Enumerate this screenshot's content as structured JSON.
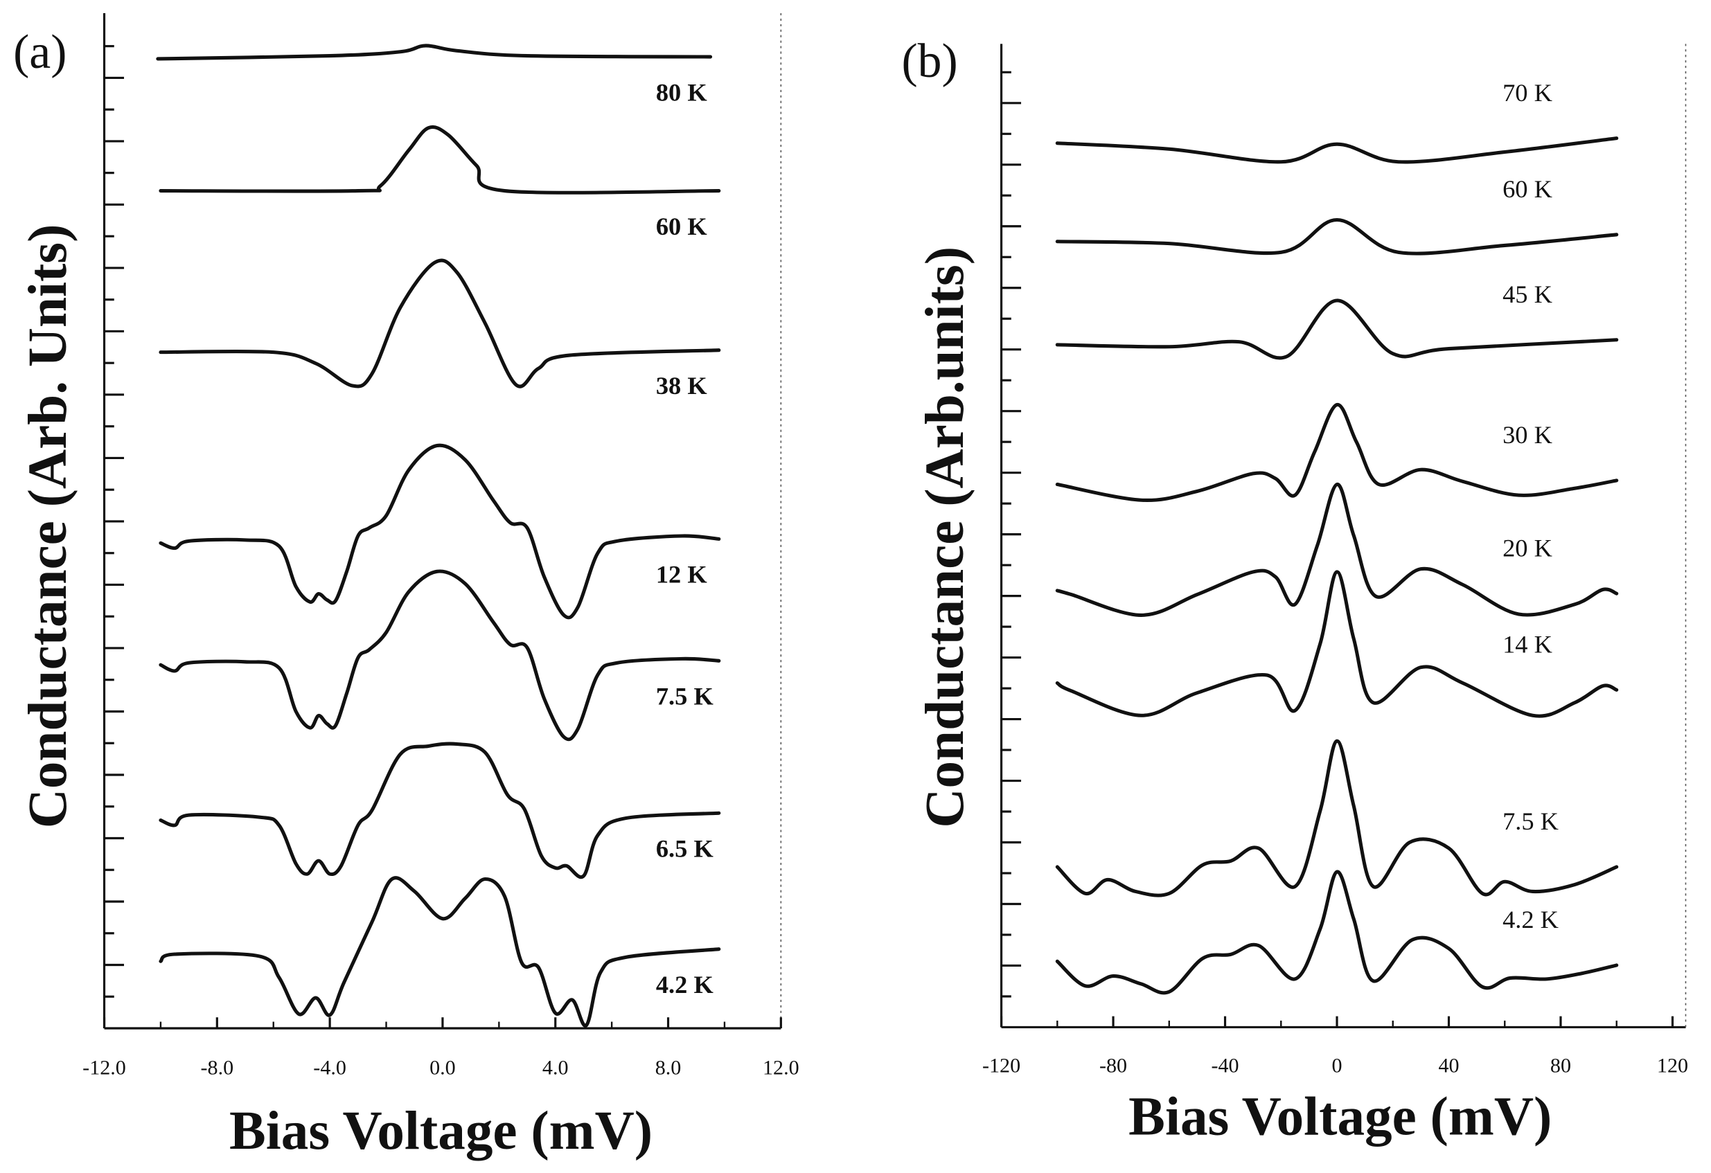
{
  "chart_data": [
    {
      "type": "line",
      "panel_label": "(a)",
      "xlabel": "Bias Voltage (mV)",
      "ylabel": "Conductance (Arb. Units)",
      "xlim": [
        -12,
        12
      ],
      "ylim": [
        0,
        10
      ],
      "xticks": [
        "-12.0",
        "-8.0",
        "-4.0",
        "0.0",
        "4.0",
        "8.0",
        "12.0"
      ],
      "xtick_values": [
        -12,
        -8,
        -4,
        0,
        4,
        8,
        12
      ],
      "y_tick_labels_shown": false,
      "grid": false,
      "series": [
        {
          "name": "80 K",
          "points": [
            [
              -10.1,
              9.55
            ],
            [
              -4,
              9.58
            ],
            [
              -1.5,
              9.62
            ],
            [
              -0.6,
              9.68
            ],
            [
              0.5,
              9.63
            ],
            [
              3,
              9.58
            ],
            [
              9.5,
              9.57
            ]
          ]
        },
        {
          "name": "60 K",
          "points": [
            [
              -10,
              8.25
            ],
            [
              -3,
              8.25
            ],
            [
              -2.2,
              8.3
            ],
            [
              -1.2,
              8.65
            ],
            [
              -0.5,
              8.87
            ],
            [
              0.2,
              8.8
            ],
            [
              1.2,
              8.5
            ],
            [
              2.2,
              8.25
            ],
            [
              9.8,
              8.25
            ]
          ]
        },
        {
          "name": "38 K",
          "points": [
            [
              -10,
              6.66
            ],
            [
              -6,
              6.66
            ],
            [
              -4.5,
              6.55
            ],
            [
              -3.2,
              6.33
            ],
            [
              -2.5,
              6.45
            ],
            [
              -1.5,
              7.1
            ],
            [
              -0.3,
              7.54
            ],
            [
              0.5,
              7.45
            ],
            [
              1.5,
              6.95
            ],
            [
              2.6,
              6.34
            ],
            [
              3.4,
              6.5
            ],
            [
              4.5,
              6.63
            ],
            [
              9.8,
              6.68
            ]
          ]
        },
        {
          "name": "12 K",
          "points": [
            [
              -10,
              4.78
            ],
            [
              -9.5,
              4.73
            ],
            [
              -9,
              4.8
            ],
            [
              -7,
              4.81
            ],
            [
              -5.8,
              4.75
            ],
            [
              -5.2,
              4.35
            ],
            [
              -4.7,
              4.2
            ],
            [
              -4.4,
              4.28
            ],
            [
              -4.1,
              4.22
            ],
            [
              -3.8,
              4.21
            ],
            [
              -3.4,
              4.5
            ],
            [
              -3,
              4.85
            ],
            [
              -2.6,
              4.93
            ],
            [
              -2,
              5.05
            ],
            [
              -1.2,
              5.5
            ],
            [
              -0.2,
              5.74
            ],
            [
              0.8,
              5.6
            ],
            [
              1.8,
              5.2
            ],
            [
              2.4,
              4.98
            ],
            [
              3.0,
              4.93
            ],
            [
              3.6,
              4.45
            ],
            [
              4.3,
              4.07
            ],
            [
              4.8,
              4.15
            ],
            [
              5.5,
              4.68
            ],
            [
              6.2,
              4.8
            ],
            [
              8.5,
              4.85
            ],
            [
              9.8,
              4.82
            ]
          ]
        },
        {
          "name": "7.5 K",
          "points": [
            [
              -10,
              3.58
            ],
            [
              -9.5,
              3.52
            ],
            [
              -9,
              3.6
            ],
            [
              -7,
              3.61
            ],
            [
              -5.8,
              3.55
            ],
            [
              -5.2,
              3.12
            ],
            [
              -4.7,
              2.96
            ],
            [
              -4.4,
              3.08
            ],
            [
              -4.1,
              3.0
            ],
            [
              -3.8,
              2.98
            ],
            [
              -3.4,
              3.3
            ],
            [
              -3,
              3.65
            ],
            [
              -2.6,
              3.73
            ],
            [
              -2,
              3.9
            ],
            [
              -1.2,
              4.3
            ],
            [
              -0.2,
              4.5
            ],
            [
              0.8,
              4.38
            ],
            [
              1.8,
              4.0
            ],
            [
              2.4,
              3.78
            ],
            [
              3.0,
              3.75
            ],
            [
              3.6,
              3.25
            ],
            [
              4.3,
              2.87
            ],
            [
              4.8,
              2.95
            ],
            [
              5.5,
              3.48
            ],
            [
              6.2,
              3.6
            ],
            [
              8.5,
              3.64
            ],
            [
              9.8,
              3.62
            ]
          ]
        },
        {
          "name": "6.5 K",
          "points": [
            [
              -10,
              2.05
            ],
            [
              -9.5,
              2.0
            ],
            [
              -9,
              2.1
            ],
            [
              -6.5,
              2.08
            ],
            [
              -5.8,
              2.0
            ],
            [
              -5.2,
              1.62
            ],
            [
              -4.8,
              1.52
            ],
            [
              -4.4,
              1.65
            ],
            [
              -4.0,
              1.52
            ],
            [
              -3.6,
              1.6
            ],
            [
              -3,
              2.0
            ],
            [
              -2.5,
              2.15
            ],
            [
              -1.5,
              2.7
            ],
            [
              -0.5,
              2.78
            ],
            [
              0.5,
              2.8
            ],
            [
              1.5,
              2.72
            ],
            [
              2.3,
              2.3
            ],
            [
              2.9,
              2.16
            ],
            [
              3.5,
              1.7
            ],
            [
              4,
              1.58
            ],
            [
              4.4,
              1.6
            ],
            [
              5,
              1.5
            ],
            [
              5.5,
              1.9
            ],
            [
              6.5,
              2.07
            ],
            [
              9.8,
              2.12
            ]
          ]
        },
        {
          "name": "4.2 K",
          "points": [
            [
              -10,
              0.66
            ],
            [
              -9.5,
              0.73
            ],
            [
              -6.5,
              0.71
            ],
            [
              -5.8,
              0.5
            ],
            [
              -5.1,
              0.14
            ],
            [
              -4.5,
              0.3
            ],
            [
              -4,
              0.13
            ],
            [
              -3.5,
              0.45
            ],
            [
              -2.5,
              1.05
            ],
            [
              -1.8,
              1.47
            ],
            [
              -1,
              1.35
            ],
            [
              0,
              1.08
            ],
            [
              0.8,
              1.28
            ],
            [
              1.5,
              1.47
            ],
            [
              2.2,
              1.3
            ],
            [
              2.8,
              0.65
            ],
            [
              3.4,
              0.6
            ],
            [
              4.0,
              0.15
            ],
            [
              4.6,
              0.28
            ],
            [
              5.1,
              0.03
            ],
            [
              5.6,
              0.55
            ],
            [
              6.5,
              0.7
            ],
            [
              9.8,
              0.78
            ]
          ]
        }
      ]
    },
    {
      "type": "line",
      "panel_label": "(b)",
      "xlabel": "Bias Voltage (mV)",
      "ylabel": "Conductance (Arb.units)",
      "xlim": [
        -120,
        120
      ],
      "ylim": [
        0,
        10
      ],
      "xticks": [
        "-120",
        "-80",
        "-40",
        "0",
        "40",
        "80",
        "120"
      ],
      "xtick_values": [
        -120,
        -80,
        -40,
        0,
        40,
        80,
        120
      ],
      "y_tick_labels_shown": false,
      "grid": false,
      "series": [
        {
          "name": "70 K",
          "points": [
            [
              -100,
              8.99
            ],
            [
              -60,
              8.93
            ],
            [
              -20,
              8.8
            ],
            [
              0,
              8.98
            ],
            [
              22,
              8.8
            ],
            [
              60,
              8.9
            ],
            [
              100,
              9.04
            ]
          ]
        },
        {
          "name": "60 K",
          "points": [
            [
              -100,
              7.99
            ],
            [
              -60,
              7.97
            ],
            [
              -20,
              7.88
            ],
            [
              0,
              8.21
            ],
            [
              22,
              7.88
            ],
            [
              60,
              7.95
            ],
            [
              100,
              8.06
            ]
          ]
        },
        {
          "name": "45 K",
          "points": [
            [
              -100,
              6.94
            ],
            [
              -60,
              6.92
            ],
            [
              -35,
              6.97
            ],
            [
              -18,
              6.82
            ],
            [
              0,
              7.39
            ],
            [
              20,
              6.85
            ],
            [
              40,
              6.9
            ],
            [
              100,
              6.99
            ]
          ]
        },
        {
          "name": "30 K",
          "points": [
            [
              -100,
              5.52
            ],
            [
              -70,
              5.36
            ],
            [
              -50,
              5.45
            ],
            [
              -30,
              5.63
            ],
            [
              -22,
              5.58
            ],
            [
              -15,
              5.41
            ],
            [
              -8,
              5.85
            ],
            [
              0,
              6.33
            ],
            [
              7,
              5.95
            ],
            [
              15,
              5.52
            ],
            [
              30,
              5.67
            ],
            [
              45,
              5.55
            ],
            [
              65,
              5.41
            ],
            [
              85,
              5.48
            ],
            [
              100,
              5.56
            ]
          ]
        },
        {
          "name": "20 K",
          "points": [
            [
              -100,
              4.44
            ],
            [
              -95,
              4.4
            ],
            [
              -70,
              4.19
            ],
            [
              -50,
              4.4
            ],
            [
              -30,
              4.63
            ],
            [
              -22,
              4.58
            ],
            [
              -15,
              4.3
            ],
            [
              -7,
              4.9
            ],
            [
              0,
              5.52
            ],
            [
              6,
              5.0
            ],
            [
              14,
              4.38
            ],
            [
              30,
              4.66
            ],
            [
              45,
              4.5
            ],
            [
              65,
              4.2
            ],
            [
              85,
              4.3
            ],
            [
              95,
              4.45
            ],
            [
              100,
              4.41
            ]
          ]
        },
        {
          "name": "14 K",
          "points": [
            [
              -100,
              3.5
            ],
            [
              -95,
              3.42
            ],
            [
              -70,
              3.17
            ],
            [
              -50,
              3.4
            ],
            [
              -25,
              3.58
            ],
            [
              -15,
              3.22
            ],
            [
              -6,
              3.9
            ],
            [
              0,
              4.63
            ],
            [
              6,
              3.95
            ],
            [
              13,
              3.3
            ],
            [
              30,
              3.66
            ],
            [
              45,
              3.5
            ],
            [
              70,
              3.17
            ],
            [
              85,
              3.3
            ],
            [
              95,
              3.47
            ],
            [
              100,
              3.43
            ]
          ]
        },
        {
          "name": "7.5 K",
          "points": [
            [
              -100,
              1.63
            ],
            [
              -90,
              1.36
            ],
            [
              -82,
              1.5
            ],
            [
              -72,
              1.38
            ],
            [
              -60,
              1.36
            ],
            [
              -48,
              1.65
            ],
            [
              -38,
              1.69
            ],
            [
              -28,
              1.82
            ],
            [
              -15,
              1.43
            ],
            [
              -6,
              2.2
            ],
            [
              0,
              2.91
            ],
            [
              6,
              2.25
            ],
            [
              13,
              1.43
            ],
            [
              26,
              1.88
            ],
            [
              40,
              1.82
            ],
            [
              52,
              1.36
            ],
            [
              60,
              1.48
            ],
            [
              70,
              1.38
            ],
            [
              85,
              1.45
            ],
            [
              100,
              1.63
            ]
          ]
        },
        {
          "name": "4.2 K",
          "points": [
            [
              -100,
              0.67
            ],
            [
              -90,
              0.42
            ],
            [
              -80,
              0.52
            ],
            [
              -70,
              0.44
            ],
            [
              -60,
              0.36
            ],
            [
              -48,
              0.7
            ],
            [
              -38,
              0.74
            ],
            [
              -28,
              0.83
            ],
            [
              -15,
              0.49
            ],
            [
              -6,
              1.0
            ],
            [
              0,
              1.58
            ],
            [
              6,
              1.1
            ],
            [
              13,
              0.47
            ],
            [
              27,
              0.89
            ],
            [
              40,
              0.8
            ],
            [
              52,
              0.41
            ],
            [
              62,
              0.5
            ],
            [
              75,
              0.49
            ],
            [
              88,
              0.55
            ],
            [
              100,
              0.63
            ]
          ]
        }
      ]
    }
  ]
}
